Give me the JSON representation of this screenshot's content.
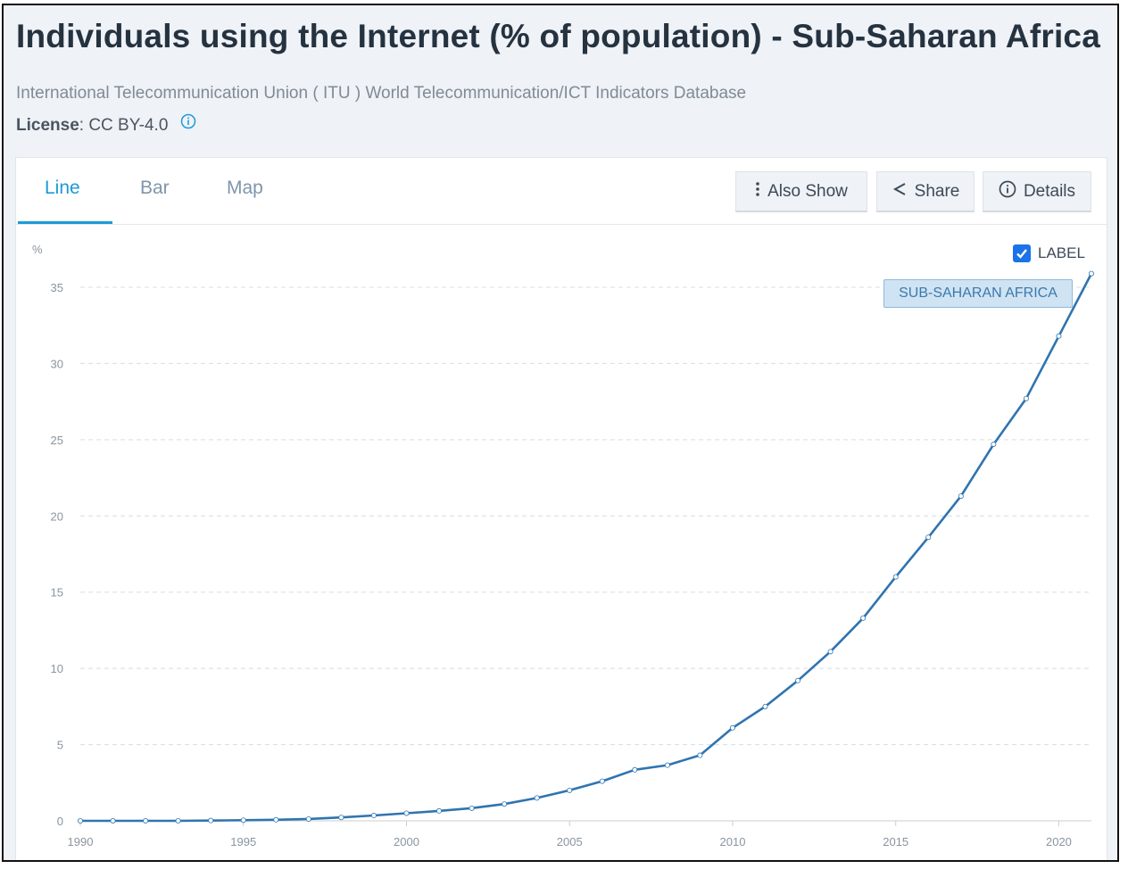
{
  "header": {
    "title": "Individuals using the Internet (% of population) - Sub-Saharan Africa",
    "source": "International Telecommunication Union ( ITU ) World Telecommunication/ICT Indicators Database",
    "license_label": "License",
    "license_value": ": CC BY-4.0"
  },
  "tabs": [
    {
      "label": "Line",
      "active": true
    },
    {
      "label": "Bar",
      "active": false
    },
    {
      "label": "Map",
      "active": false
    }
  ],
  "toolbar": {
    "also_show": "Also Show",
    "share": "Share",
    "details": "Details"
  },
  "label_toggle": {
    "label": "LABEL",
    "checked": true
  },
  "series_tag": "SUB-SAHARAN AFRICA",
  "colors": {
    "accent": "#1d9ad6",
    "line": "#2f74b0",
    "grid": "#d8dde2"
  },
  "chart_data": {
    "type": "line",
    "title": "",
    "xlabel": "",
    "ylabel": "%",
    "xlim": [
      1990,
      2021
    ],
    "ylim": [
      0,
      35
    ],
    "x_ticks": [
      1990,
      1995,
      2000,
      2005,
      2010,
      2015,
      2020
    ],
    "y_ticks": [
      0,
      5,
      10,
      15,
      20,
      25,
      30,
      35
    ],
    "grid": "horizontal dashed",
    "series": [
      {
        "name": "SUB-SAHARAN AFRICA",
        "x": [
          1990,
          1991,
          1992,
          1993,
          1994,
          1995,
          1996,
          1997,
          1998,
          1999,
          2000,
          2001,
          2002,
          2003,
          2004,
          2005,
          2006,
          2007,
          2008,
          2009,
          2010,
          2011,
          2012,
          2013,
          2014,
          2015,
          2016,
          2017,
          2018,
          2019,
          2020,
          2021
        ],
        "values": [
          0,
          0,
          0,
          0,
          0.02,
          0.04,
          0.07,
          0.12,
          0.22,
          0.35,
          0.5,
          0.65,
          0.83,
          1.1,
          1.5,
          2.0,
          2.6,
          3.35,
          3.65,
          4.3,
          6.1,
          7.5,
          9.2,
          11.1,
          13.3,
          16.0,
          18.6,
          21.3,
          24.7,
          27.7,
          31.8,
          35.9
        ]
      }
    ]
  }
}
